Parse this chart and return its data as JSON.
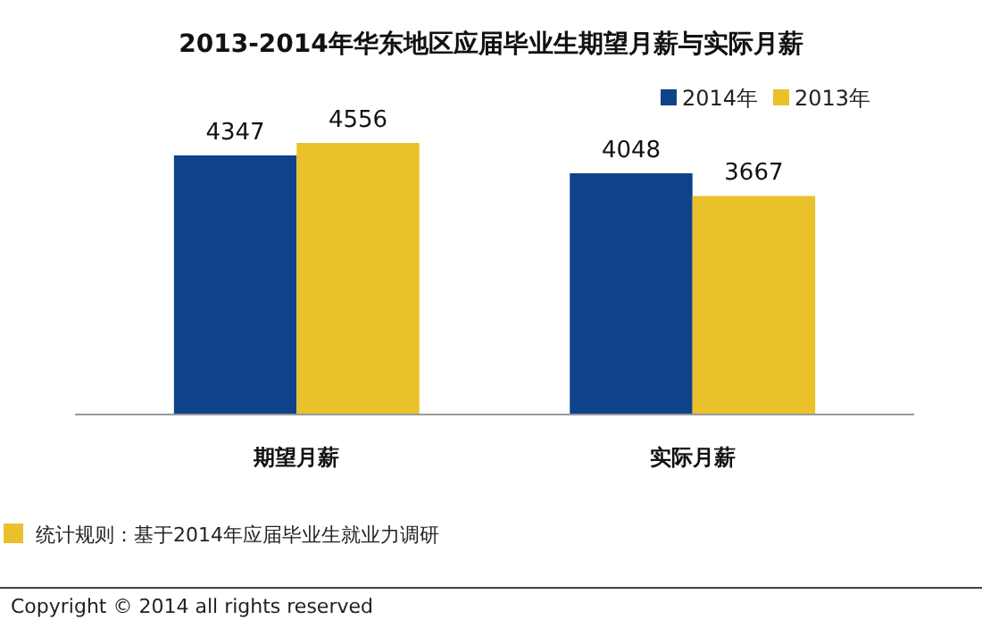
{
  "chart_data": {
    "type": "bar",
    "title": "2013-2014年华东地区应届毕业生期望月薪与实际月薪",
    "categories": [
      "期望月薪",
      "实际月薪"
    ],
    "series": [
      {
        "name": "2014年",
        "color": "#10428a",
        "values": [
          4347,
          4048
        ]
      },
      {
        "name": "2013年",
        "color": "#e9c12b",
        "values": [
          4556,
          3667
        ]
      }
    ],
    "data_labels": true,
    "legend": "top right",
    "grid": false,
    "annotations": [
      "统计规则：基于2014年应届毕业生就业力调研",
      "Copyright © 2014 all rights reserved"
    ]
  }
}
